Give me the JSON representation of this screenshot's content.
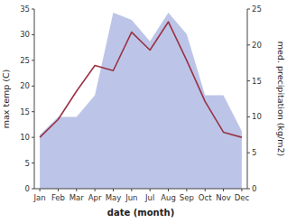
{
  "chart_data": {
    "type": "line",
    "categories": [
      "Jan",
      "Feb",
      "Mar",
      "Apr",
      "May",
      "Jun",
      "Jul",
      "Aug",
      "Sep",
      "Oct",
      "Nov",
      "Dec"
    ],
    "series": [
      {
        "type": "area",
        "axis": "y2",
        "color": "#bcc5e8",
        "values": [
          7.5,
          10.0,
          10.0,
          13.0,
          24.5,
          23.5,
          20.5,
          24.5,
          21.5,
          13.0,
          13.0,
          8.0
        ]
      },
      {
        "type": "line",
        "color": "#993344",
        "values": [
          10.0,
          13.5,
          19.0,
          24.0,
          23.0,
          30.5,
          27.0,
          32.5,
          25.0,
          17.0,
          11.0,
          10.0
        ]
      }
    ],
    "xlabel": "date (month)",
    "ylabel": "max temp (C)",
    "y2label": "med. precipitation (kg/m2)",
    "ylim": [
      0,
      35
    ],
    "yticks": [
      0,
      5,
      10,
      15,
      20,
      25,
      30,
      35
    ],
    "y2lim": [
      0,
      25
    ],
    "y2ticks": [
      0,
      5,
      10,
      15,
      20,
      25
    ],
    "grid": false
  }
}
